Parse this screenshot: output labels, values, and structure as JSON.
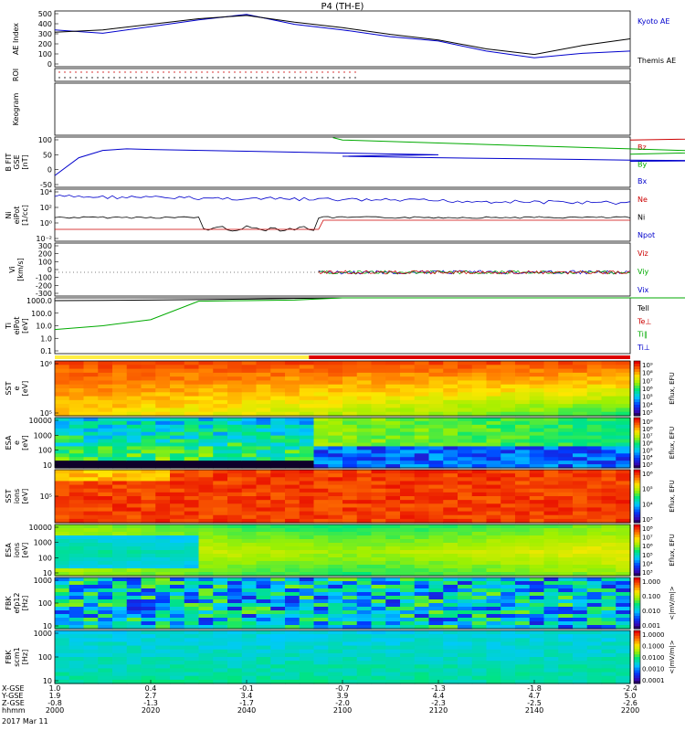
{
  "title": "P4 (TH-E)",
  "date_label": "2017 Mar 11",
  "panels": [
    {
      "id": "ae",
      "ylabel": [
        "AE Index"
      ],
      "ticks": [
        "500",
        "400",
        "300",
        "200",
        "100",
        "0"
      ],
      "legend": [
        {
          "text": "Kyoto AE",
          "color": "#0000cc"
        },
        {
          "text": "Themis AE",
          "color": "#000000"
        }
      ]
    },
    {
      "id": "roi",
      "ylabel": [
        "ROI"
      ],
      "ticks": [],
      "legend": []
    },
    {
      "id": "keogram",
      "ylabel": [
        "Keogram"
      ],
      "ticks": [],
      "legend": []
    },
    {
      "id": "bfield",
      "ylabel": [
        "B FIT",
        "GSE",
        "[nT]"
      ],
      "ticks": [
        "100",
        "50",
        "0",
        "-50"
      ],
      "legend": [
        {
          "text": "Bz",
          "color": "#cc0000"
        },
        {
          "text": "By",
          "color": "#00aa00"
        },
        {
          "text": "Bx",
          "color": "#0000cc"
        }
      ]
    },
    {
      "id": "density",
      "ylabel": [
        "Ni",
        "eiPot",
        "[1/cc]"
      ],
      "ticks": [
        "10⁴",
        "10²",
        "10⁰",
        "10⁻²"
      ],
      "legend": [
        {
          "text": "Ne",
          "color": "#cc0000"
        },
        {
          "text": "Ni",
          "color": "#000000"
        },
        {
          "text": "Npot",
          "color": "#0000cc"
        }
      ]
    },
    {
      "id": "velocity",
      "ylabel": [
        "Vi",
        "[km/s]"
      ],
      "ticks": [
        "300",
        "200",
        "100",
        "0",
        "-100",
        "-200",
        "-300"
      ],
      "legend": [
        {
          "text": "Viz",
          "color": "#cc0000"
        },
        {
          "text": "Viy",
          "color": "#00aa00"
        },
        {
          "text": "Vix",
          "color": "#0000cc"
        }
      ]
    },
    {
      "id": "temp",
      "ylabel": [
        "Ti",
        "eiPot",
        "[eV]"
      ],
      "ticks": [
        "1000.0",
        "100.0",
        "10.0",
        "1.0",
        "0.1"
      ],
      "legend": [
        {
          "text": "Tell",
          "color": "#000000"
        },
        {
          "text": "Te⊥",
          "color": "#cc0000"
        },
        {
          "text": "Ti∥",
          "color": "#00aa00"
        },
        {
          "text": "Ti⊥",
          "color": "#0000cc"
        }
      ]
    },
    {
      "id": "sst_e",
      "ylabel": [
        "SST",
        "e",
        "[eV]"
      ],
      "ticks": [
        "10⁶",
        "10⁵"
      ],
      "cbar": [
        "10⁹",
        "10⁸",
        "10⁷",
        "10⁶",
        "10⁵",
        "10⁴",
        "10³"
      ],
      "cbar_label": "Eflux, EFU"
    },
    {
      "id": "esa_e",
      "ylabel": [
        "ESA",
        "e",
        "[eV]"
      ],
      "ticks": [
        "10000",
        "1000",
        "100",
        "10"
      ],
      "cbar": [
        "10⁹",
        "10⁸",
        "10⁷",
        "10⁶",
        "10⁵",
        "10⁴",
        "10³"
      ],
      "cbar_label": "Eflux, EFU"
    },
    {
      "id": "sst_i",
      "ylabel": [
        "SST",
        "ions",
        "[eV]"
      ],
      "ticks": [
        "10⁵"
      ],
      "cbar": [
        "10⁶",
        "10⁵",
        "10⁴",
        "10³"
      ],
      "cbar_label": "Eflux, EFU"
    },
    {
      "id": "esa_i",
      "ylabel": [
        "ESA",
        "ions",
        "[eV]"
      ],
      "ticks": [
        "10000",
        "1000",
        "100",
        "10"
      ],
      "cbar": [
        "10⁸",
        "10⁷",
        "10⁶",
        "10⁵",
        "10⁴",
        "10³"
      ],
      "cbar_label": "Eflux, EFU"
    },
    {
      "id": "fbk_e",
      "ylabel": [
        "FBK",
        "efp12",
        "[Hz]"
      ],
      "ticks": [
        "1000",
        "100",
        "10"
      ],
      "cbar": [
        "1.000",
        "0.100",
        "0.010",
        "0.001"
      ],
      "cbar_label": "<|mV/m|>"
    },
    {
      "id": "fbk_s",
      "ylabel": [
        "FBK",
        "scm1",
        "[Hz]"
      ],
      "ticks": [
        "1000",
        "100",
        "10"
      ],
      "cbar": [
        "1.0000",
        "0.1000",
        "0.0100",
        "0.0010",
        "0.0001"
      ],
      "cbar_label": "<|mV/m|>"
    }
  ],
  "x_axis": {
    "row_labels": [
      "X-GSE",
      "Y-GSE",
      "Z-GSE",
      "hhmm"
    ],
    "columns": [
      {
        "x_gse": "1.0",
        "y_gse": "1.9",
        "z_gse": "-0.8",
        "hhmm": "2000"
      },
      {
        "x_gse": "0.4",
        "y_gse": "2.7",
        "z_gse": "-1.3",
        "hhmm": "2020"
      },
      {
        "x_gse": "-0.1",
        "y_gse": "3.4",
        "z_gse": "-1.7",
        "hhmm": "2040"
      },
      {
        "x_gse": "-0.7",
        "y_gse": "3.9",
        "z_gse": "-2.0",
        "hhmm": "2100"
      },
      {
        "x_gse": "-1.3",
        "y_gse": "4.4",
        "z_gse": "-2.3",
        "hhmm": "2120"
      },
      {
        "x_gse": "-1.8",
        "y_gse": "4.7",
        "z_gse": "-2.5",
        "hhmm": "2140"
      },
      {
        "x_gse": "-2.4",
        "y_gse": "5.0",
        "z_gse": "-2.6",
        "hhmm": "2200"
      }
    ]
  },
  "chart_data": {
    "type": "line",
    "xlabel": "hhmm",
    "x_range": [
      "2000",
      "2200"
    ],
    "series": [
      {
        "name": "Kyoto AE",
        "color": "#0000cc",
        "panel": "ae",
        "x": [
          2000,
          2010,
          2020,
          2030,
          2040,
          2050,
          2100,
          2110,
          2120,
          2130,
          2140,
          2150,
          2200
        ],
        "values": [
          330,
          300,
          360,
          420,
          470,
          380,
          330,
          270,
          230,
          140,
          80,
          120,
          140
        ]
      },
      {
        "name": "Themis AE",
        "color": "#000000",
        "panel": "ae",
        "x": [
          2000,
          2010,
          2020,
          2030,
          2040,
          2050,
          2100,
          2110,
          2120,
          2130,
          2140,
          2150,
          2200
        ],
        "values": [
          310,
          330,
          380,
          430,
          460,
          400,
          350,
          290,
          240,
          160,
          110,
          190,
          250
        ]
      },
      {
        "name": "Bx",
        "color": "#0000cc",
        "panel": "bfield",
        "x": [
          2000,
          2005,
          2010,
          2015,
          2020,
          2040,
          2060,
          2080,
          2100,
          2120,
          2140,
          2160,
          2180,
          2200
        ],
        "values": [
          -30,
          30,
          55,
          60,
          58,
          52,
          46,
          40,
          35,
          30,
          26,
          22,
          20,
          18
        ]
      },
      {
        "name": "By",
        "color": "#00aa00",
        "panel": "bfield",
        "x": [
          2058,
          2100,
          2120,
          2140,
          2160,
          2180,
          2200
        ],
        "values": [
          98,
          90,
          80,
          70,
          60,
          50,
          42
        ]
      },
      {
        "name": "Bz",
        "color": "#cc0000",
        "panel": "bfield",
        "x": [
          2180,
          2190,
          2200
        ],
        "values": [
          100,
          98,
          90
        ]
      },
      {
        "name": "Tell",
        "color": "#000000",
        "panel": "temp",
        "x": [
          2000,
          2010,
          2020,
          2030,
          2040,
          2050,
          2100,
          2120,
          2140,
          2160,
          2180,
          2200
        ],
        "values": [
          1000,
          1050,
          1100,
          1200,
          1300,
          1500,
          2000,
          2200,
          2300,
          2400,
          2500,
          2600
        ]
      },
      {
        "name": "Ti∥",
        "color": "#00aa00",
        "panel": "temp",
        "x": [
          2000,
          2010,
          2020,
          2030,
          2040,
          2050,
          2100,
          2120,
          2140,
          2160,
          2180,
          2200
        ],
        "values": [
          5,
          10,
          30,
          900,
          1000,
          1100,
          1800,
          2100,
          2400,
          2500,
          2600,
          2600
        ]
      }
    ]
  }
}
